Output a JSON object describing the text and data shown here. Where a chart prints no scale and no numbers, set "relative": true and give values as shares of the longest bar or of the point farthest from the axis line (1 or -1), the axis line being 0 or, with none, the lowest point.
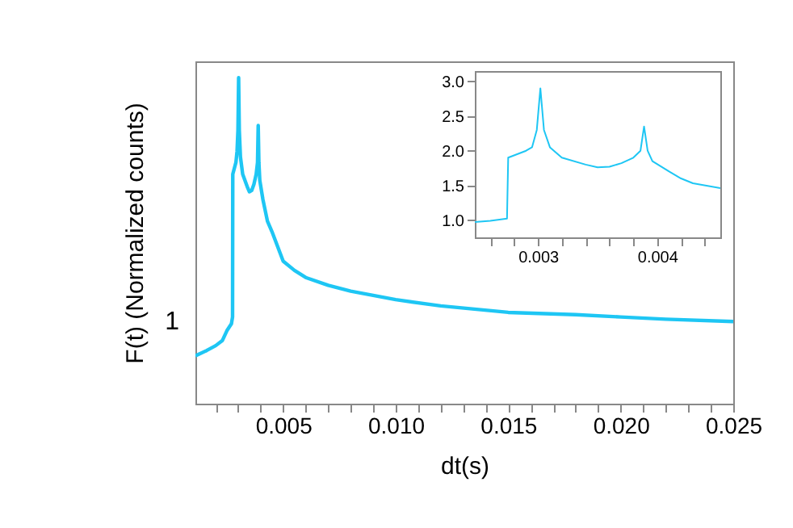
{
  "chart_data": [
    {
      "type": "line",
      "xlabel": "dt(s)",
      "ylabel": "F(t) (Normalized counts)",
      "relative": true,
      "grid": false,
      "annotations": [
        "1"
      ],
      "xlim": [
        0.0011,
        0.025
      ],
      "xticks": [
        {
          "value": 0.002,
          "label": null
        },
        {
          "value": 0.003,
          "label": null
        },
        {
          "value": 0.004,
          "label": null
        },
        0.005,
        {
          "value": 0.006,
          "label": null
        },
        {
          "value": 0.007,
          "label": null
        },
        {
          "value": 0.008,
          "label": null
        },
        {
          "value": 0.009,
          "label": null
        },
        {
          "value": 0.01,
          "label": "0.010"
        },
        {
          "value": 0.011,
          "label": null
        },
        {
          "value": 0.012,
          "label": null
        },
        {
          "value": 0.013,
          "label": null
        },
        {
          "value": 0.014,
          "label": null
        },
        0.015,
        {
          "value": 0.016,
          "label": null
        },
        {
          "value": 0.017,
          "label": null
        },
        {
          "value": 0.018,
          "label": null
        },
        {
          "value": 0.019,
          "label": null
        },
        {
          "value": 0.02,
          "label": "0.020"
        },
        {
          "value": 0.021,
          "label": null
        },
        {
          "value": 0.022,
          "label": null
        },
        {
          "value": 0.023,
          "label": null
        },
        {
          "value": 0.024,
          "label": null
        },
        0.025
      ],
      "x": [
        0.0011,
        0.0016,
        0.002,
        0.0023,
        0.0025,
        0.0027,
        0.00275,
        0.00276,
        0.0029,
        0.00295,
        0.00299,
        0.00302,
        0.00305,
        0.0031,
        0.0032,
        0.0034,
        0.0035,
        0.0036,
        0.0037,
        0.0038,
        0.00386,
        0.00389,
        0.00392,
        0.00396,
        0.0041,
        0.0043,
        0.0045,
        0.005,
        0.0055,
        0.006,
        0.007,
        0.008,
        0.009,
        0.01,
        0.012,
        0.015,
        0.018,
        0.02,
        0.022,
        0.025
      ],
      "series": [
        {
          "color": "#1ec6f4",
          "values": [
            0.147,
            0.163,
            0.178,
            0.194,
            0.224,
            0.245,
            0.266,
            0.704,
            0.74,
            0.774,
            0.838,
            1.0,
            0.838,
            0.757,
            0.704,
            0.666,
            0.65,
            0.654,
            0.673,
            0.704,
            0.74,
            0.853,
            0.74,
            0.685,
            0.626,
            0.56,
            0.528,
            0.437,
            0.409,
            0.387,
            0.363,
            0.345,
            0.332,
            0.319,
            0.3,
            0.28,
            0.273,
            0.266,
            0.259,
            0.252
          ]
        }
      ]
    },
    {
      "type": "line",
      "grid": false,
      "xlim": [
        0.00247,
        0.00453
      ],
      "ylim": [
        0.75,
        3.15
      ],
      "xticks": [
        {
          "value": 0.0026,
          "label": null
        },
        {
          "value": 0.0028,
          "label": null
        },
        0.003,
        {
          "value": 0.0032,
          "label": null
        },
        {
          "value": 0.0034,
          "label": null
        },
        {
          "value": 0.0036,
          "label": null
        },
        {
          "value": 0.0038,
          "label": null
        },
        0.004,
        {
          "value": 0.0042,
          "label": null
        },
        {
          "value": 0.0044,
          "label": null
        }
      ],
      "yticks": [
        {
          "value": 1,
          "label": "1.0"
        },
        1.5,
        {
          "value": 2,
          "label": "2.0"
        },
        2.5,
        {
          "value": 3,
          "label": "3.0"
        }
      ],
      "x": [
        0.00247,
        0.0026,
        0.00274,
        0.00275,
        0.0029,
        0.00295,
        0.00299,
        0.00302,
        0.00305,
        0.0031,
        0.0032,
        0.0034,
        0.0035,
        0.0036,
        0.0037,
        0.0038,
        0.00386,
        0.00389,
        0.00392,
        0.00396,
        0.0041,
        0.0042,
        0.0043,
        0.00453
      ],
      "series": [
        {
          "color": "#1ec6f4",
          "values": [
            0.97,
            0.99,
            1.02,
            1.9,
            2.0,
            2.05,
            2.3,
            2.9,
            2.3,
            2.05,
            1.9,
            1.8,
            1.76,
            1.77,
            1.82,
            1.9,
            2.0,
            2.35,
            2.0,
            1.85,
            1.7,
            1.6,
            1.53,
            1.46
          ]
        }
      ]
    }
  ]
}
